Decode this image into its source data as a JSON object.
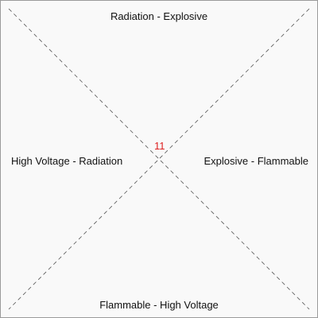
{
  "regions": {
    "top": "Radiation - Explosive",
    "right": "Explosive - Flammable",
    "bottom": "Flammable - High Voltage",
    "left": "High Voltage - Radiation"
  },
  "center_value": "11",
  "colors": {
    "panel_background": "#f9f9f9",
    "panel_border": "#9a9a9a",
    "diagonal_line": "#555555",
    "label_text": "#111111",
    "center_value": "#dd1f1f"
  }
}
